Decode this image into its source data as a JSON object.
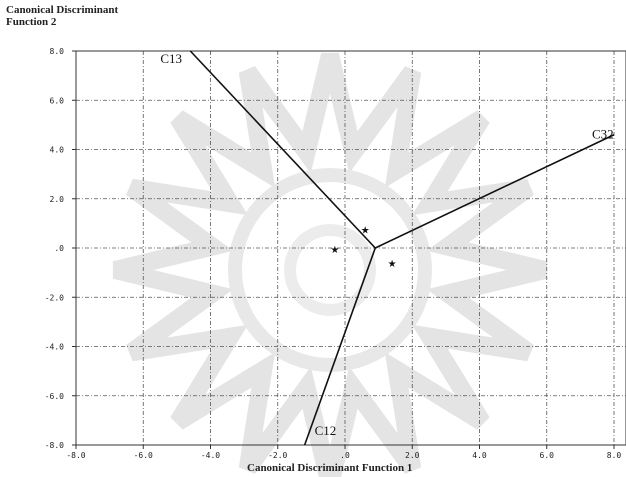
{
  "chart_data": {
    "type": "scatter",
    "title": "",
    "ylabel_lines": [
      "Canonical Discriminant",
      "Function 2"
    ],
    "xlabel": "Canonical Discriminant Function 1",
    "xlim": [
      -8.0,
      8.0
    ],
    "ylim": [
      -8.0,
      8.0
    ],
    "grid": true,
    "x_ticks": [
      -8.0,
      -6.0,
      -4.0,
      -2.0,
      0.0,
      2.0,
      4.0,
      6.0,
      8.0
    ],
    "x_tick_labels": [
      "-8.0",
      "-6.0",
      "-4.0",
      "-2.0",
      ".0",
      "2.0",
      "4.0",
      "6.0",
      "8.0"
    ],
    "y_ticks": [
      8.0,
      6.0,
      4.0,
      2.0,
      0.0,
      -2.0,
      -4.0,
      -6.0,
      -8.0
    ],
    "y_tick_labels": [
      "8.0",
      "6.0",
      "4.0",
      "2.0",
      ".0",
      "-2.0",
      "-4.0",
      "-6.0",
      "-8.0"
    ],
    "boundary_vertex": [
      0.9,
      0.0
    ],
    "boundaries": [
      {
        "label": "C13",
        "end": [
          -4.6,
          8.0
        ]
      },
      {
        "label": "C32",
        "end": [
          8.0,
          4.6
        ]
      },
      {
        "label": "C12",
        "end": [
          -1.2,
          -8.0
        ]
      }
    ],
    "centroids": [
      {
        "x": 0.6,
        "y": 0.75
      },
      {
        "x": -0.3,
        "y": -0.05
      },
      {
        "x": 1.4,
        "y": -0.6
      }
    ],
    "marker": "★"
  }
}
